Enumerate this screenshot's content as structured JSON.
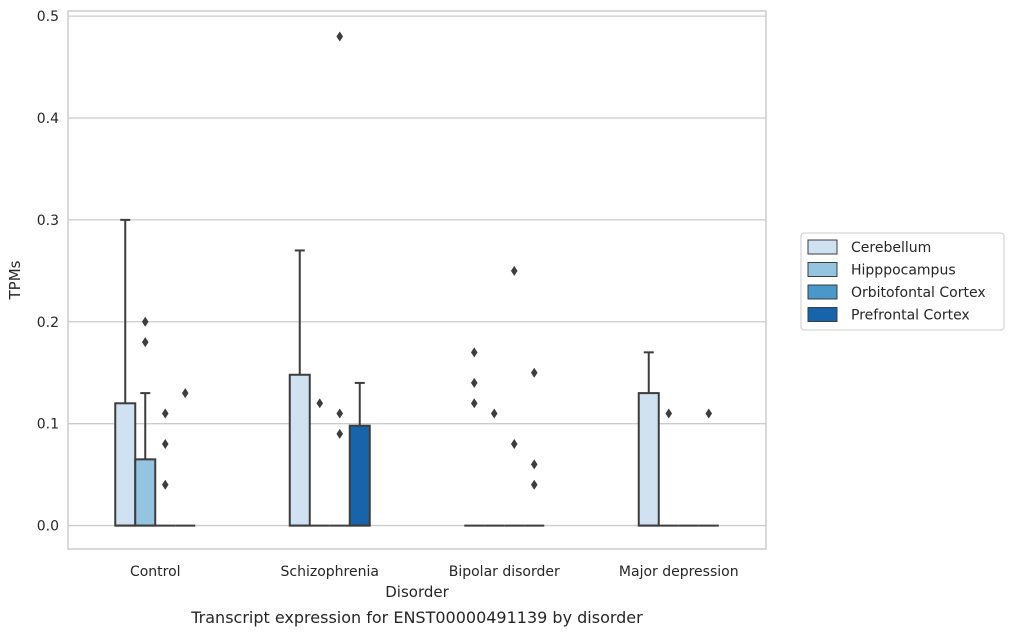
{
  "chart_data": {
    "type": "box",
    "title": "",
    "caption": "Transcript expression for ENST00000491139 by disorder",
    "xlabel": "Disorder",
    "ylabel": "TPMs",
    "ylim": [
      -0.023,
      0.505
    ],
    "yticks": [
      "0.0",
      "0.1",
      "0.2",
      "0.3",
      "0.4",
      "0.5"
    ],
    "ytick_values": [
      0,
      0.1,
      0.2,
      0.3,
      0.4,
      0.5
    ],
    "grid": true,
    "legend_position": "right",
    "categories": [
      "Control",
      "Schizophrenia",
      "Bipolar disorder",
      "Major depression"
    ],
    "series": [
      {
        "name": "Cerebellum",
        "color": "#d0e1f2",
        "boxes": [
          {
            "q1": 0,
            "median": 0,
            "q3": 0.12,
            "whislo": 0,
            "whishi": 0.3,
            "fliers": []
          },
          {
            "q1": 0,
            "median": 0,
            "q3": 0.148,
            "whislo": 0,
            "whishi": 0.27,
            "fliers": []
          },
          {
            "q1": 0,
            "median": 0,
            "q3": 0,
            "whislo": 0,
            "whishi": 0,
            "fliers": [
              0.17,
              0.14,
              0.12
            ]
          },
          {
            "q1": 0,
            "median": 0,
            "q3": 0.13,
            "whislo": 0,
            "whishi": 0.17,
            "fliers": []
          }
        ]
      },
      {
        "name": "Hipppocampus",
        "color": "#94c4df",
        "boxes": [
          {
            "q1": 0,
            "median": 0,
            "q3": 0.065,
            "whislo": 0,
            "whishi": 0.13,
            "fliers": [
              0.2,
              0.18
            ]
          },
          {
            "q1": 0,
            "median": 0,
            "q3": 0,
            "whislo": 0,
            "whishi": 0,
            "fliers": [
              0.12
            ]
          },
          {
            "q1": 0,
            "median": 0,
            "q3": 0,
            "whislo": 0,
            "whishi": 0,
            "fliers": [
              0.11
            ]
          },
          {
            "q1": 0,
            "median": 0,
            "q3": 0,
            "whislo": 0,
            "whishi": 0,
            "fliers": [
              0.11
            ]
          }
        ]
      },
      {
        "name": "Orbitofontal Cortex",
        "color": "#4a98c9",
        "boxes": [
          {
            "q1": 0,
            "median": 0,
            "q3": 0,
            "whislo": 0,
            "whishi": 0,
            "fliers": [
              0.11,
              0.08,
              0.04
            ]
          },
          {
            "q1": 0,
            "median": 0,
            "q3": 0,
            "whislo": 0,
            "whishi": 0,
            "fliers": [
              0.11,
              0.09,
              0.48
            ]
          },
          {
            "q1": 0,
            "median": 0,
            "q3": 0,
            "whislo": 0,
            "whishi": 0,
            "fliers": [
              0.25,
              0.08
            ]
          },
          {
            "q1": 0,
            "median": 0,
            "q3": 0,
            "whislo": 0,
            "whishi": 0,
            "fliers": []
          }
        ]
      },
      {
        "name": "Prefrontal Cortex",
        "color": "#1764ab",
        "boxes": [
          {
            "q1": 0,
            "median": 0,
            "q3": 0,
            "whislo": 0,
            "whishi": 0,
            "fliers": [
              0.13
            ]
          },
          {
            "q1": 0,
            "median": 0,
            "q3": 0.098,
            "whislo": 0,
            "whishi": 0.14,
            "fliers": []
          },
          {
            "q1": 0,
            "median": 0,
            "q3": 0,
            "whislo": 0,
            "whishi": 0,
            "fliers": [
              0.15,
              0.06,
              0.04
            ]
          },
          {
            "q1": 0,
            "median": 0,
            "q3": 0,
            "whislo": 0,
            "whishi": 0,
            "fliers": [
              0.11
            ]
          }
        ]
      }
    ]
  }
}
